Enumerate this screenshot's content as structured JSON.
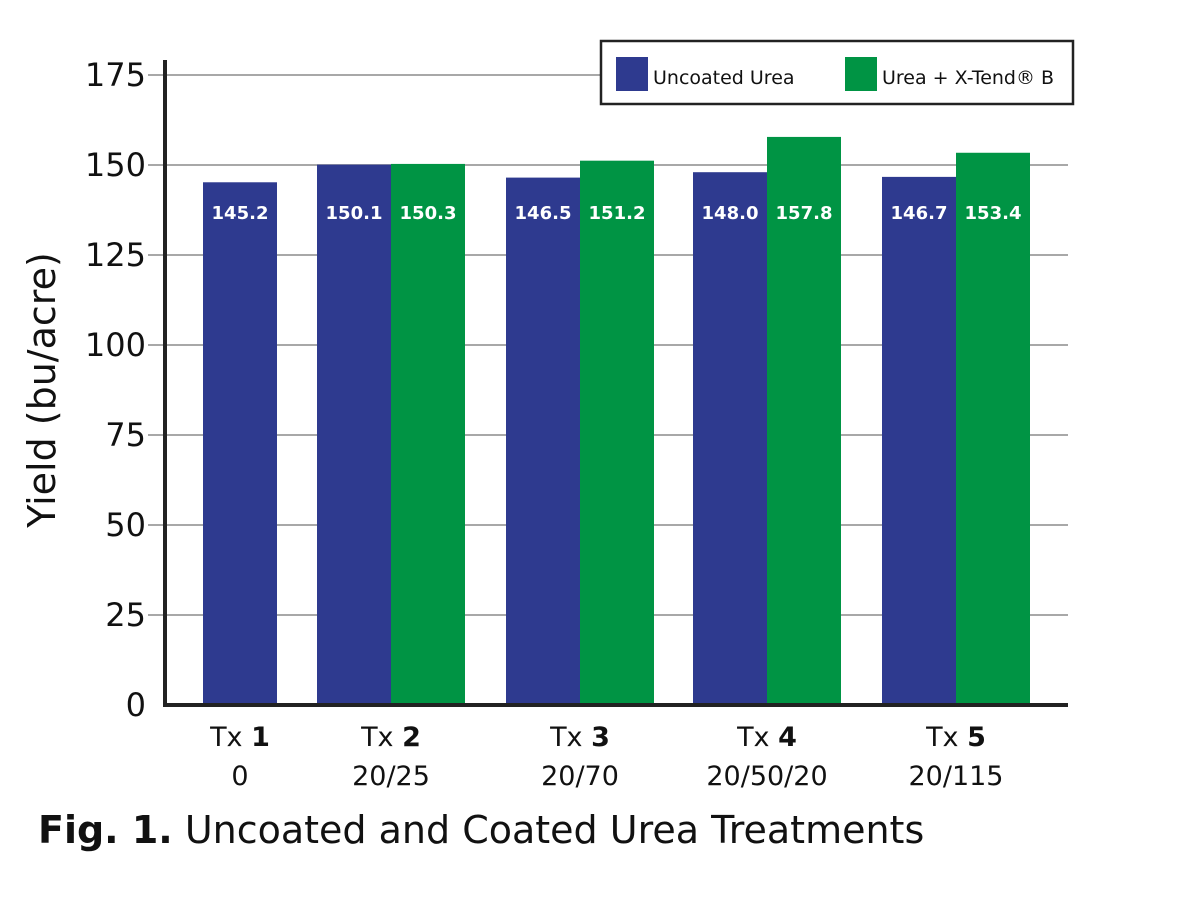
{
  "chart_data": {
    "type": "bar",
    "title": "",
    "caption_prefix": "Fig. 1.",
    "caption_text": "Uncoated and Coated Urea Treatments",
    "xlabel": "",
    "ylabel": "Yield (bu/acre)",
    "ylim": [
      0,
      175
    ],
    "yticks": [
      0,
      25,
      50,
      75,
      100,
      125,
      150,
      175
    ],
    "grid": true,
    "legend_position": "top-right",
    "categories": [
      {
        "prefix": "Tx",
        "number": "1",
        "rate": "0"
      },
      {
        "prefix": "Tx",
        "number": "2",
        "rate": "20/25"
      },
      {
        "prefix": "Tx",
        "number": "3",
        "rate": "20/70"
      },
      {
        "prefix": "Tx",
        "number": "4",
        "rate": "20/50/20"
      },
      {
        "prefix": "Tx",
        "number": "5",
        "rate": "20/115"
      }
    ],
    "series": [
      {
        "name": "Uncoated Urea",
        "color": "#2e3a8f",
        "values": [
          145.2,
          150.1,
          146.5,
          148.0,
          146.7
        ],
        "labels": [
          "145.2",
          "150.1",
          "146.5",
          "148.0",
          "146.7"
        ]
      },
      {
        "name": "Urea + X-Tend® B",
        "color": "#009444",
        "values": [
          null,
          150.3,
          151.2,
          157.8,
          153.4
        ],
        "labels": [
          "",
          "150.3",
          "151.2",
          "157.8",
          "153.4"
        ]
      }
    ]
  }
}
